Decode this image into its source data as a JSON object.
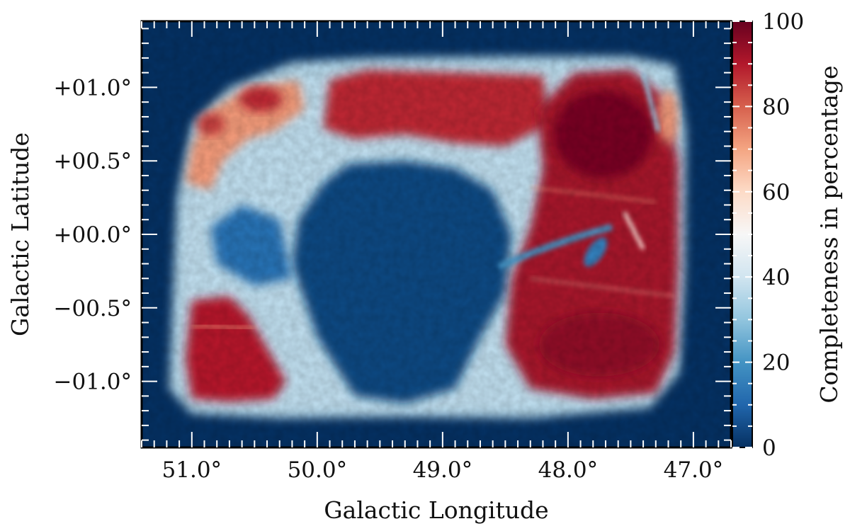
{
  "chart_data": {
    "type": "heatmap",
    "title": "",
    "xlabel": "Galactic Longitude",
    "ylabel": "Galactic Latitude",
    "xlim": [
      51.4,
      46.7
    ],
    "ylim": [
      -1.45,
      1.45
    ],
    "x_ticks": [
      {
        "value": 51.0,
        "label": "51.0°"
      },
      {
        "value": 50.0,
        "label": "50.0°"
      },
      {
        "value": 49.0,
        "label": "49.0°"
      },
      {
        "value": 48.0,
        "label": "48.0°"
      },
      {
        "value": 47.0,
        "label": "47.0°"
      }
    ],
    "y_ticks": [
      {
        "value": 1.0,
        "label": "+01.0°"
      },
      {
        "value": 0.5,
        "label": "+00.5°"
      },
      {
        "value": 0.0,
        "label": "+00.0°"
      },
      {
        "value": -0.5,
        "label": "−00.5°"
      },
      {
        "value": -1.0,
        "label": "−01.0°"
      }
    ],
    "colorbar": {
      "label": "Completeness in percentage",
      "range": [
        0,
        100
      ],
      "ticks": [
        {
          "value": 0,
          "label": "0"
        },
        {
          "value": 20,
          "label": "20"
        },
        {
          "value": 40,
          "label": "40"
        },
        {
          "value": 60,
          "label": "60"
        },
        {
          "value": 80,
          "label": "80"
        },
        {
          "value": 100,
          "label": "100"
        }
      ],
      "colormap": "RdBu_r",
      "colors": [
        "#053061",
        "#2166ac",
        "#4393c3",
        "#92c5de",
        "#d1e5f0",
        "#f7f7f7",
        "#fddbc7",
        "#f4a582",
        "#d6604d",
        "#b2182b",
        "#67001f"
      ]
    },
    "background_value": 3,
    "regions": [
      {
        "name": "survey footprint edge",
        "value": 35,
        "lon": [
          51.2,
          47.05
        ],
        "lat": [
          -1.25,
          1.2
        ]
      },
      {
        "name": "upper-left field",
        "value": 72,
        "lon": [
          51.0,
          50.1
        ],
        "lat": [
          0.3,
          1.05
        ]
      },
      {
        "name": "top band",
        "value": 88,
        "lon": [
          49.95,
          48.2
        ],
        "lat": [
          0.65,
          1.1
        ]
      },
      {
        "name": "right field",
        "value": 92,
        "lon": [
          48.2,
          47.1
        ],
        "lat": [
          -1.1,
          1.1
        ]
      },
      {
        "name": "right field core",
        "value": 98,
        "lon": [
          48.1,
          47.4
        ],
        "lat": [
          0.35,
          1.0
        ]
      },
      {
        "name": "lower-left field",
        "value": 90,
        "lon": [
          51.0,
          50.2
        ],
        "lat": [
          -1.15,
          -0.4
        ]
      },
      {
        "name": "central gap",
        "value": 4,
        "lon": [
          49.9,
          48.5
        ],
        "lat": [
          -1.1,
          0.5
        ]
      }
    ]
  }
}
